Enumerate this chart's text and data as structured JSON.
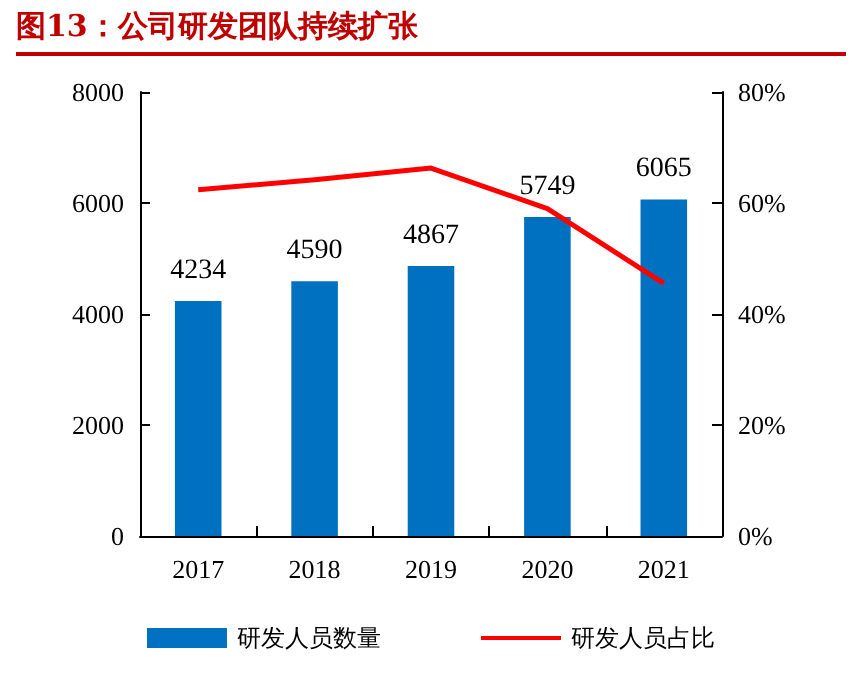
{
  "chart_data": {
    "type": "bar",
    "title": "图13：公司研发团队持续扩张",
    "categories": [
      "2017",
      "2018",
      "2019",
      "2020",
      "2021"
    ],
    "series": [
      {
        "name": "研发人员数量",
        "color": "#0070c0",
        "values": [
          4234,
          4590,
          4867,
          5749,
          6065
        ],
        "value_labels": [
          "4234",
          "4590",
          "4867",
          "5749",
          "6065"
        ]
      },
      {
        "name": "研发人员占比",
        "type": "line",
        "axis": "y2",
        "color": "#ff0000",
        "values": [
          62.4,
          64.2,
          66.3,
          59.0,
          45.5
        ],
        "marker": "none"
      }
    ],
    "ylim": [
      0,
      8000
    ],
    "yticks": [
      0,
      2000,
      4000,
      6000,
      8000
    ],
    "y2lim": [
      0,
      80
    ],
    "y2ticks": [
      {
        "value": 0,
        "label": "0%"
      },
      {
        "value": 20,
        "label": "20%"
      },
      {
        "value": 40,
        "label": "40%"
      },
      {
        "value": 60,
        "label": "60%"
      },
      {
        "value": 80,
        "label": "80%"
      }
    ],
    "grid": false,
    "legend": "bottom"
  }
}
